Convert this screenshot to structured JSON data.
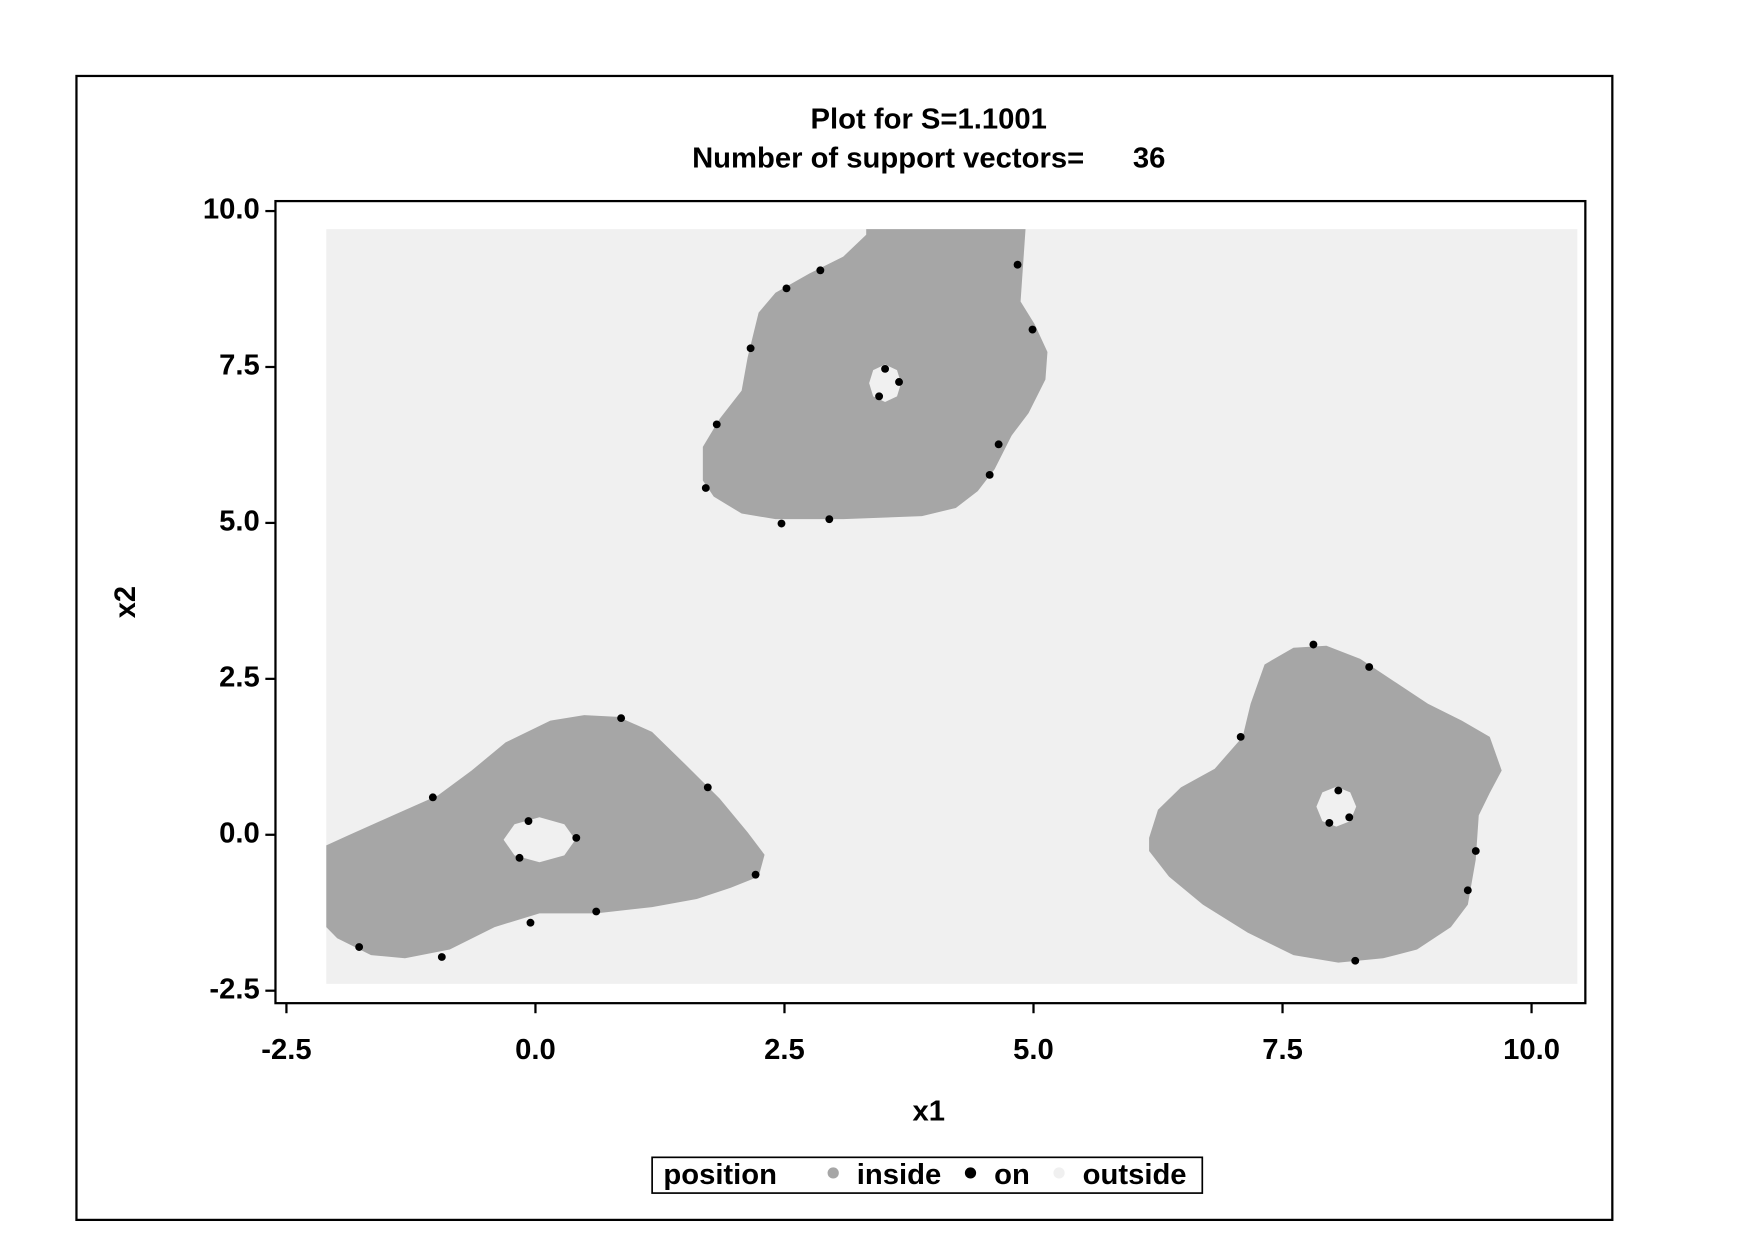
{
  "chart_data": {
    "type": "scatter",
    "title": "Plot for S=1.1001",
    "subtitle": "Number of support vectors=      36",
    "x_label": "x1",
    "y_label": "x2",
    "legend_title": "position",
    "xlim": [
      -2.61,
      10.54
    ],
    "ylim": [
      -2.7,
      10.16
    ],
    "xticks": [
      -2.5,
      {
        "value": 0,
        "label": "0.0"
      },
      2.5,
      {
        "value": 5,
        "label": "5.0"
      },
      7.5,
      {
        "value": 10,
        "label": "10.0"
      }
    ],
    "yticks": [
      -2.5,
      {
        "value": 0,
        "label": "0.0"
      },
      2.5,
      {
        "value": 5,
        "label": "5.0"
      },
      7.5,
      {
        "value": 10,
        "label": "10.0"
      }
    ],
    "series": [
      {
        "name": "inside",
        "color": "#a6a6a6",
        "style": "area",
        "x": [
          3.32,
          4.92,
          4.87,
          5.01,
          5.14,
          5.12,
          4.95,
          4.78,
          4.61,
          4.44,
          4.22,
          3.88,
          3.09,
          2.41,
          2.07,
          1.79,
          1.68,
          1.68,
          1.85,
          2.07,
          2.13,
          2.24,
          2.41,
          2.75,
          3.09,
          3.32,
          null,
          3.51,
          3.63,
          3.67,
          3.63,
          3.51,
          3.39,
          3.35,
          3.39,
          null,
          -2.1,
          -1.88,
          -1.43,
          -0.98,
          -0.64,
          -0.3,
          0.15,
          0.49,
          0.83,
          1.17,
          1.51,
          1.85,
          2.13,
          2.3,
          2.24,
          1.96,
          1.62,
          1.17,
          0.61,
          0.04,
          -0.41,
          -0.86,
          -1.31,
          -1.65,
          -1.99,
          -2.1,
          null,
          0.04,
          0.29,
          0.4,
          0.29,
          0.04,
          -0.21,
          -0.32,
          -0.21,
          null,
          6.16,
          6.25,
          6.48,
          6.82,
          7.1,
          7.18,
          7.32,
          7.61,
          7.94,
          8.28,
          8.62,
          8.96,
          9.3,
          9.58,
          9.7,
          9.58,
          9.47,
          9.44,
          9.36,
          9.19,
          8.85,
          8.51,
          8.06,
          7.61,
          7.15,
          6.7,
          6.36,
          6.16,
          null,
          8.04,
          8.18,
          8.24,
          8.18,
          8.04,
          7.9,
          7.84,
          7.9
        ],
        "y": [
          9.71,
          9.71,
          8.55,
          8.19,
          7.74,
          7.3,
          6.76,
          6.4,
          5.86,
          5.51,
          5.24,
          5.11,
          5.06,
          5.06,
          5.15,
          5.42,
          5.68,
          6.22,
          6.67,
          7.12,
          7.65,
          8.37,
          8.69,
          9.0,
          9.27,
          9.62,
          null,
          7.54,
          7.45,
          7.24,
          7.03,
          6.94,
          7.03,
          7.24,
          7.45,
          null,
          -0.17,
          -0.01,
          0.31,
          0.63,
          1.03,
          1.48,
          1.83,
          1.92,
          1.89,
          1.65,
          1.12,
          0.58,
          0.04,
          -0.32,
          -0.67,
          -0.85,
          -1.03,
          -1.16,
          -1.26,
          -1.26,
          -1.48,
          -1.84,
          -1.98,
          -1.93,
          -1.66,
          -1.48,
          null,
          0.28,
          0.17,
          -0.08,
          -0.33,
          -0.44,
          -0.33,
          -0.08,
          0.17,
          null,
          -0.05,
          0.4,
          0.76,
          1.06,
          1.57,
          2.1,
          2.73,
          3.0,
          3.03,
          2.82,
          2.46,
          2.1,
          1.83,
          1.57,
          1.03,
          0.67,
          0.31,
          -0.4,
          -1.12,
          -1.48,
          -1.84,
          -1.98,
          -2.05,
          -1.93,
          -1.57,
          -1.12,
          -0.67,
          -0.26,
          null,
          0.77,
          0.68,
          0.45,
          0.22,
          0.13,
          0.22,
          0.45,
          0.68
        ]
      },
      {
        "name": "on",
        "color": "#000000",
        "style": "marker",
        "x": [
          4.84,
          4.99,
          4.65,
          4.56,
          2.95,
          2.47,
          1.71,
          1.82,
          2.16,
          2.52,
          2.86,
          3.51,
          3.65,
          3.45,
          -1.03,
          0.86,
          1.73,
          2.21,
          0.61,
          -0.05,
          -0.94,
          -1.77,
          0.41,
          -0.07,
          -0.16,
          7.81,
          8.37,
          7.08,
          9.44,
          9.36,
          8.23,
          7.97,
          8.17,
          8.06
        ],
        "y": [
          9.14,
          8.1,
          6.26,
          5.77,
          5.06,
          4.99,
          5.56,
          6.58,
          7.8,
          8.76,
          9.05,
          7.47,
          7.26,
          7.03,
          0.6,
          1.87,
          0.76,
          -0.64,
          -1.23,
          -1.41,
          -1.96,
          -1.8,
          -0.05,
          0.22,
          -0.37,
          3.05,
          2.69,
          1.57,
          -0.26,
          -0.89,
          -2.02,
          0.19,
          0.28,
          0.71
        ]
      },
      {
        "name": "outside",
        "color": "#f0f0f0",
        "style": "area",
        "x": [
          -2.1,
          10.46,
          10.46,
          -2.1
        ],
        "y": [
          9.71,
          9.71,
          -2.39,
          -2.39
        ]
      }
    ]
  }
}
